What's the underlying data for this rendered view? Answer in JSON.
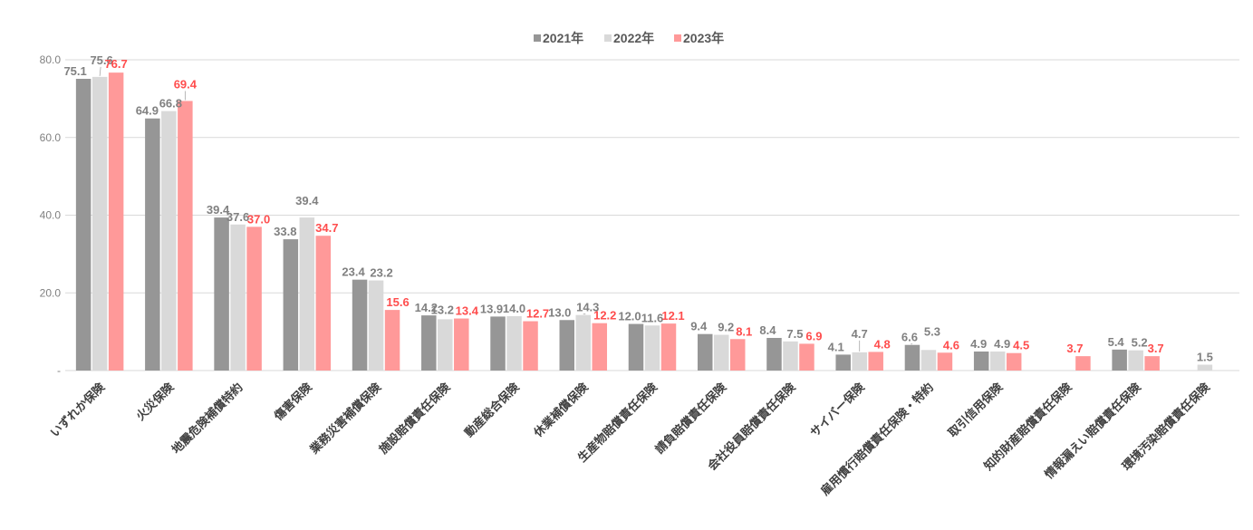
{
  "chart_data": {
    "type": "bar",
    "categories": [
      "いずれか保険",
      "火災保険",
      "地震危険補償特約",
      "傷害保険",
      "業務災害補償保険",
      "施設賠償責任保険",
      "動産総合保険",
      "休業補償保険",
      "生産物賠償責任保険",
      "請負賠償責任保険",
      "会社役員賠償責任保険",
      "サイバー保険",
      "雇用慣行賠償責任保険・特約",
      "取引信用保険",
      "知的財産賠償責任保険",
      "情報漏えい賠償責任保険",
      "環境汚染賠償責任保険"
    ],
    "series": [
      {
        "name": "2021年",
        "color": "#969696",
        "label_color": "#808080",
        "values": [
          75.1,
          64.9,
          39.4,
          33.8,
          23.4,
          14.2,
          13.9,
          13.0,
          12.0,
          9.4,
          8.4,
          4.1,
          6.6,
          4.9,
          null,
          5.4,
          null
        ]
      },
      {
        "name": "2022年",
        "color": "#d9d9d9",
        "label_color": "#808080",
        "values": [
          75.6,
          66.8,
          37.6,
          39.4,
          23.2,
          13.2,
          14.0,
          14.3,
          11.6,
          9.2,
          7.5,
          4.7,
          5.3,
          4.9,
          null,
          5.2,
          1.5
        ]
      },
      {
        "name": "2023年",
        "color": "#ff9999",
        "label_color": "#ff4d4d",
        "values": [
          76.7,
          69.4,
          37.0,
          34.7,
          15.6,
          13.4,
          12.7,
          12.2,
          12.1,
          8.1,
          6.9,
          4.8,
          4.6,
          4.5,
          3.7,
          3.7,
          null
        ]
      }
    ],
    "yticks": [
      "80.0",
      "60.0",
      "40.0",
      "20.0",
      "-"
    ],
    "ylim": [
      0,
      80
    ],
    "grid": true,
    "legend": "top-center"
  }
}
